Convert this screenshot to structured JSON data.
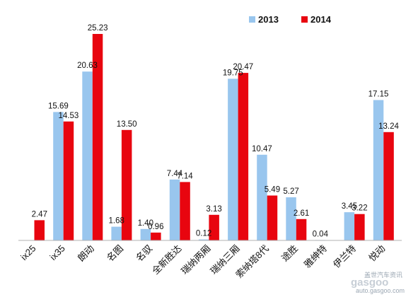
{
  "chart_data": {
    "type": "bar",
    "categories": [
      "ix25",
      "ix35",
      "朗动",
      "名图",
      "名驭",
      "全新胜达",
      "瑞纳两厢",
      "瑞纳三厢",
      "索纳塔8代",
      "途胜",
      "雅绅特",
      "伊兰特",
      "悦动"
    ],
    "series": [
      {
        "name": "2013",
        "color": "#99c6ee",
        "values": [
          null,
          15.69,
          20.63,
          1.68,
          1.4,
          7.44,
          0.12,
          19.75,
          10.47,
          5.27,
          0.04,
          3.45,
          17.15
        ]
      },
      {
        "name": "2014",
        "color": "#e8050f",
        "values": [
          2.47,
          14.53,
          25.23,
          13.5,
          0.96,
          7.14,
          3.13,
          20.47,
          5.49,
          2.61,
          null,
          3.22,
          13.24
        ]
      }
    ],
    "value_labels": [
      [
        "",
        "15.69",
        "20.63",
        "1.68",
        "1.40",
        "7.44",
        "0.12",
        "19.75",
        "10.47",
        "5.27",
        "0.04",
        "3.45",
        "17.15"
      ],
      [
        "2.47",
        "14.53",
        "25.23",
        "13.50",
        "0.96",
        "7.14",
        "3.13",
        "20.47",
        "5.49",
        "2.61",
        "",
        "3.22",
        "13.24"
      ]
    ],
    "ylim": [
      0,
      27
    ],
    "grid": false,
    "legend_position": "top-right",
    "title": "",
    "xlabel": "",
    "ylabel": ""
  },
  "watermark": {
    "logo": "gasgoo",
    "site_cn": "盖世汽车资讯",
    "url": "auto.gasgoo.com"
  }
}
